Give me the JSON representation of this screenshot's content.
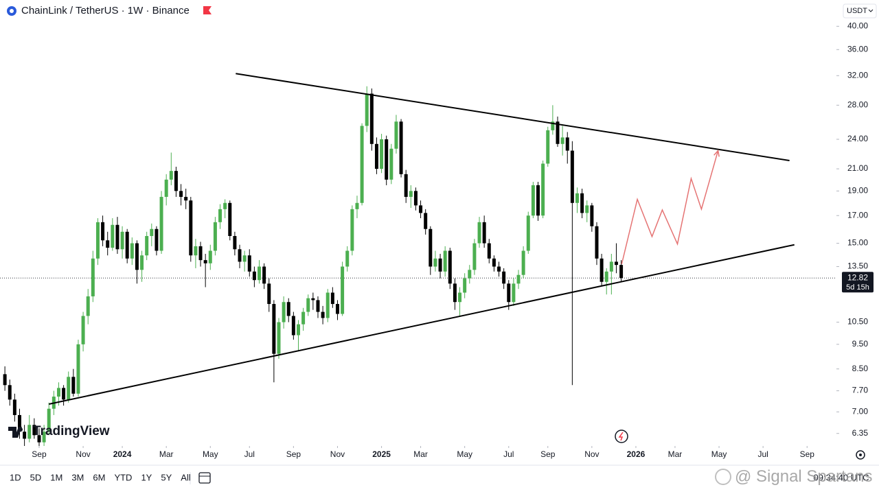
{
  "header": {
    "title": "ChainLink / TetherUS · 1W · Binance",
    "currency": "USDT"
  },
  "chart_data": {
    "type": "candlestick",
    "scale": "log",
    "ylim": [
      6.0,
      41.3
    ],
    "yticks": [
      {
        "value": 40,
        "label": "40.00"
      },
      {
        "value": 36,
        "label": "36.00"
      },
      {
        "value": 32,
        "label": "32.00"
      },
      {
        "value": 28,
        "label": "28.00"
      },
      {
        "value": 24,
        "label": "24.00"
      },
      {
        "value": 21,
        "label": "21.00"
      },
      {
        "value": 19,
        "label": "19.00"
      },
      {
        "value": 17,
        "label": "17.00"
      },
      {
        "value": 15,
        "label": "15.00"
      },
      {
        "value": 13.5,
        "label": "13.50"
      },
      {
        "value": 10.5,
        "label": "10.50"
      },
      {
        "value": 9.5,
        "label": "9.50"
      },
      {
        "value": 8.5,
        "label": "8.50"
      },
      {
        "value": 7.7,
        "label": "7.70"
      },
      {
        "value": 7,
        "label": "7.00"
      },
      {
        "value": 6.35,
        "label": "6.35"
      }
    ],
    "xlim": [
      -1,
      170
    ],
    "xticks": [
      {
        "value": 7,
        "label": "Sep"
      },
      {
        "value": 16,
        "label": "Nov"
      },
      {
        "value": 24,
        "label": "2024"
      },
      {
        "value": 33,
        "label": "Mar"
      },
      {
        "value": 42,
        "label": "May"
      },
      {
        "value": 50,
        "label": "Jul"
      },
      {
        "value": 59,
        "label": "Sep"
      },
      {
        "value": 68,
        "label": "Nov"
      },
      {
        "value": 77,
        "label": "2025"
      },
      {
        "value": 85,
        "label": "Mar"
      },
      {
        "value": 94,
        "label": "May"
      },
      {
        "value": 103,
        "label": "Jul"
      },
      {
        "value": 111,
        "label": "Sep"
      },
      {
        "value": 120,
        "label": "Nov"
      },
      {
        "value": 129,
        "label": "2026"
      },
      {
        "value": 137,
        "label": "Mar"
      },
      {
        "value": 146,
        "label": "May"
      },
      {
        "value": 155,
        "label": "Jul"
      },
      {
        "value": 164,
        "label": "Sep"
      }
    ],
    "up_color": "#4caf50",
    "down_color": "#000000",
    "ohlc": [
      [
        8.3,
        8.6,
        7.7,
        7.9
      ],
      [
        7.9,
        8.1,
        7.2,
        7.4
      ],
      [
        7.4,
        7.6,
        6.7,
        6.9
      ],
      [
        6.9,
        7.1,
        6.2,
        6.4
      ],
      [
        6.4,
        6.6,
        6.0,
        6.2
      ],
      [
        6.2,
        6.9,
        6.1,
        6.6
      ],
      [
        6.6,
        6.8,
        6.2,
        6.3
      ],
      [
        6.3,
        6.5,
        6.0,
        6.1
      ],
      [
        6.1,
        6.6,
        6.0,
        6.4
      ],
      [
        6.4,
        7.3,
        6.3,
        7.1
      ],
      [
        7.1,
        7.7,
        6.9,
        7.5
      ],
      [
        7.5,
        8.0,
        7.2,
        7.8
      ],
      [
        7.8,
        7.9,
        7.2,
        7.4
      ],
      [
        7.4,
        8.4,
        7.3,
        8.2
      ],
      [
        8.2,
        8.5,
        7.5,
        7.6
      ],
      [
        7.6,
        9.7,
        7.5,
        9.5
      ],
      [
        9.5,
        11.0,
        9.2,
        10.8
      ],
      [
        10.8,
        12.2,
        10.4,
        11.8
      ],
      [
        11.8,
        14.5,
        11.5,
        14.0
      ],
      [
        14.0,
        16.8,
        13.6,
        16.5
      ],
      [
        16.5,
        17.0,
        14.8,
        15.2
      ],
      [
        15.2,
        15.8,
        14.2,
        14.7
      ],
      [
        14.7,
        16.8,
        14.5,
        16.3
      ],
      [
        16.3,
        16.9,
        14.3,
        14.6
      ],
      [
        14.6,
        16.2,
        14.0,
        15.8
      ],
      [
        15.8,
        16.0,
        13.7,
        14.0
      ],
      [
        14.0,
        15.4,
        13.6,
        15.0
      ],
      [
        15.0,
        15.2,
        12.5,
        13.3
      ],
      [
        13.3,
        14.5,
        12.6,
        14.2
      ],
      [
        14.2,
        15.8,
        13.9,
        15.5
      ],
      [
        15.5,
        16.4,
        14.8,
        16.0
      ],
      [
        16.0,
        16.2,
        14.2,
        14.5
      ],
      [
        14.5,
        19.0,
        14.3,
        18.5
      ],
      [
        18.5,
        20.5,
        17.8,
        20.0
      ],
      [
        20.0,
        22.6,
        19.5,
        20.8
      ],
      [
        20.8,
        21.2,
        18.5,
        19.0
      ],
      [
        19.0,
        19.6,
        17.8,
        18.5
      ],
      [
        18.5,
        19.2,
        17.5,
        18.2
      ],
      [
        18.2,
        18.5,
        13.8,
        14.2
      ],
      [
        14.2,
        15.3,
        13.4,
        14.8
      ],
      [
        14.8,
        15.1,
        13.5,
        13.9
      ],
      [
        13.9,
        14.3,
        12.3,
        13.7
      ],
      [
        13.7,
        14.9,
        13.3,
        14.5
      ],
      [
        14.5,
        16.9,
        14.2,
        16.5
      ],
      [
        16.5,
        17.9,
        16.0,
        17.5
      ],
      [
        17.5,
        18.3,
        16.8,
        18.0
      ],
      [
        18.0,
        18.2,
        15.2,
        15.5
      ],
      [
        15.5,
        15.8,
        14.2,
        14.6
      ],
      [
        14.6,
        14.9,
        13.4,
        13.8
      ],
      [
        13.8,
        14.5,
        13.2,
        14.2
      ],
      [
        14.2,
        14.6,
        12.9,
        13.2
      ],
      [
        13.2,
        13.5,
        12.3,
        12.7
      ],
      [
        12.7,
        13.9,
        12.5,
        13.5
      ],
      [
        13.5,
        13.7,
        12.2,
        12.5
      ],
      [
        12.5,
        12.8,
        11.0,
        11.4
      ],
      [
        11.4,
        11.6,
        8.0,
        9.1
      ],
      [
        9.1,
        10.7,
        8.9,
        10.5
      ],
      [
        10.5,
        11.8,
        10.2,
        11.5
      ],
      [
        11.5,
        11.7,
        10.5,
        10.8
      ],
      [
        10.8,
        11.0,
        9.7,
        9.9
      ],
      [
        9.9,
        10.6,
        9.2,
        10.4
      ],
      [
        10.4,
        11.2,
        10.1,
        11.0
      ],
      [
        11.0,
        11.9,
        10.8,
        11.7
      ],
      [
        11.7,
        12.0,
        11.1,
        11.6
      ],
      [
        11.6,
        11.8,
        10.7,
        11.0
      ],
      [
        11.0,
        11.3,
        10.4,
        10.7
      ],
      [
        10.7,
        12.2,
        10.5,
        12.0
      ],
      [
        12.0,
        12.3,
        11.2,
        11.4
      ],
      [
        11.4,
        11.6,
        10.6,
        10.9
      ],
      [
        10.9,
        13.8,
        10.8,
        13.5
      ],
      [
        13.5,
        14.8,
        13.2,
        14.5
      ],
      [
        14.5,
        17.8,
        14.2,
        17.5
      ],
      [
        17.5,
        18.6,
        16.8,
        18.0
      ],
      [
        18.0,
        25.8,
        17.8,
        25.5
      ],
      [
        25.5,
        30.5,
        24.8,
        29.5
      ],
      [
        29.5,
        30.2,
        22.8,
        23.5
      ],
      [
        23.5,
        24.2,
        20.5,
        21.0
      ],
      [
        21.0,
        24.6,
        20.6,
        24.0
      ],
      [
        24.0,
        24.4,
        19.5,
        20.0
      ],
      [
        20.0,
        23.5,
        19.6,
        23.0
      ],
      [
        23.0,
        26.8,
        22.5,
        26.0
      ],
      [
        26.0,
        26.3,
        20.2,
        20.5
      ],
      [
        20.5,
        20.9,
        18.0,
        18.5
      ],
      [
        18.5,
        19.5,
        17.6,
        19.0
      ],
      [
        19.0,
        19.3,
        17.4,
        17.8
      ],
      [
        17.8,
        18.2,
        16.8,
        17.2
      ],
      [
        17.2,
        17.5,
        15.6,
        16.0
      ],
      [
        16.0,
        16.2,
        13.0,
        13.5
      ],
      [
        13.5,
        14.5,
        13.2,
        14.0
      ],
      [
        14.0,
        14.3,
        12.8,
        13.2
      ],
      [
        13.2,
        14.8,
        12.9,
        14.5
      ],
      [
        14.5,
        14.7,
        12.2,
        12.5
      ],
      [
        12.5,
        12.8,
        11.1,
        11.5
      ],
      [
        11.5,
        12.3,
        10.8,
        12.0
      ],
      [
        12.0,
        13.1,
        11.7,
        12.8
      ],
      [
        12.8,
        13.6,
        12.5,
        13.3
      ],
      [
        13.3,
        15.3,
        13.0,
        15.0
      ],
      [
        15.0,
        16.9,
        14.7,
        16.5
      ],
      [
        16.5,
        17.0,
        14.7,
        15.0
      ],
      [
        15.0,
        15.3,
        13.7,
        14.0
      ],
      [
        14.0,
        14.2,
        13.2,
        13.5
      ],
      [
        13.5,
        13.8,
        12.9,
        13.2
      ],
      [
        13.2,
        13.4,
        12.2,
        12.5
      ],
      [
        12.5,
        12.7,
        11.1,
        11.5
      ],
      [
        11.5,
        12.8,
        11.3,
        12.5
      ],
      [
        12.5,
        13.3,
        12.2,
        13.0
      ],
      [
        13.0,
        14.8,
        12.8,
        14.5
      ],
      [
        14.5,
        17.3,
        14.3,
        17.0
      ],
      [
        17.0,
        19.8,
        16.8,
        19.5
      ],
      [
        19.5,
        19.8,
        16.6,
        17.0
      ],
      [
        17.0,
        21.8,
        16.8,
        21.5
      ],
      [
        21.5,
        25.4,
        21.2,
        25.0
      ],
      [
        25.0,
        28.0,
        24.5,
        26.0
      ],
      [
        26.0,
        26.6,
        23.2,
        23.5
      ],
      [
        23.5,
        25.5,
        22.3,
        24.2
      ],
      [
        24.2,
        24.8,
        21.5,
        22.8
      ],
      [
        22.8,
        23.8,
        7.9,
        18.0
      ],
      [
        18.0,
        19.3,
        17.2,
        18.8
      ],
      [
        18.8,
        19.2,
        16.8,
        17.2
      ],
      [
        17.2,
        18.2,
        16.5,
        17.8
      ],
      [
        17.8,
        18.0,
        15.8,
        16.2
      ],
      [
        16.2,
        16.5,
        13.6,
        14.0
      ],
      [
        14.0,
        14.3,
        12.4,
        12.6
      ],
      [
        12.6,
        13.4,
        11.9,
        13.2
      ],
      [
        13.2,
        14.3,
        11.9,
        13.8
      ],
      [
        13.8,
        15.0,
        13.1,
        13.6
      ],
      [
        13.6,
        13.9,
        12.6,
        12.82
      ]
    ],
    "last_price": 12.82,
    "countdown": "5d 15h",
    "trendlines": [
      {
        "color": "#000000",
        "points": [
          [
            47.2,
            32.3
          ],
          [
            160.4,
            21.8
          ]
        ]
      },
      {
        "color": "#000000",
        "points": [
          [
            9.0,
            7.25
          ],
          [
            161.4,
            14.9
          ]
        ]
      }
    ],
    "projection": {
      "color": "#e57373",
      "points": [
        [
          126.1,
          13.65
        ],
        [
          129.3,
          18.3
        ],
        [
          132.3,
          15.46
        ],
        [
          134.4,
          17.44
        ],
        [
          137.5,
          14.95
        ],
        [
          140.3,
          20.1
        ],
        [
          142.4,
          17.5
        ],
        [
          145.8,
          22.8
        ]
      ]
    }
  },
  "branding": "TradingView",
  "toolbar": {
    "ranges": [
      "1D",
      "5D",
      "1M",
      "3M",
      "6M",
      "YTD",
      "1Y",
      "5Y",
      "All"
    ],
    "clock": "09:34:40 UTC"
  },
  "watermark": "Signal Spartans"
}
